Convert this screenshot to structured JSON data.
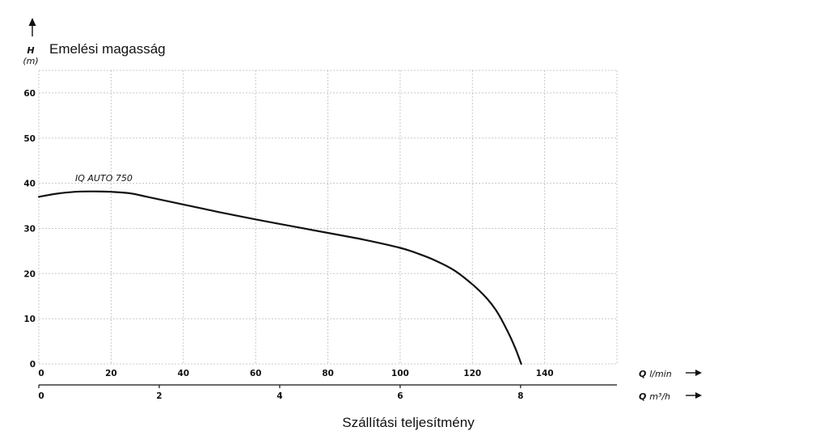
{
  "chart_data": {
    "type": "line",
    "title": "Emelési magasság",
    "xlabel": "Szállítási teljesítmény",
    "y_axis": {
      "symbol": "H",
      "unit": "(m)",
      "ticks": [
        "0",
        "10",
        "20",
        "30",
        "40",
        "50",
        "60"
      ],
      "ylim": [
        0,
        65
      ]
    },
    "x_axis_primary": {
      "symbol": "Q",
      "unit": "l/min",
      "ticks": [
        "0",
        "20",
        "40",
        "60",
        "80",
        "100",
        "120",
        "140"
      ],
      "xlim": [
        0,
        160
      ]
    },
    "x_axis_secondary": {
      "symbol": "Q",
      "unit": "m³/h",
      "ticks": [
        "0",
        "2",
        "4",
        "6",
        "8"
      ],
      "max": 9.6
    },
    "grid": true,
    "series": [
      {
        "name": "IQ AUTO 750",
        "x": [
          0,
          5,
          10,
          15,
          20,
          25,
          30,
          40,
          50,
          60,
          70,
          80,
          90,
          100,
          105,
          110,
          115,
          120,
          124,
          127,
          130,
          132,
          133.5
        ],
        "y": [
          37,
          37.7,
          38.1,
          38.2,
          38.1,
          37.8,
          37.0,
          35.3,
          33.6,
          32.0,
          30.5,
          29.0,
          27.5,
          25.7,
          24.4,
          22.8,
          20.7,
          17.6,
          14.5,
          11.3,
          6.8,
          3.2,
          0
        ]
      }
    ]
  }
}
